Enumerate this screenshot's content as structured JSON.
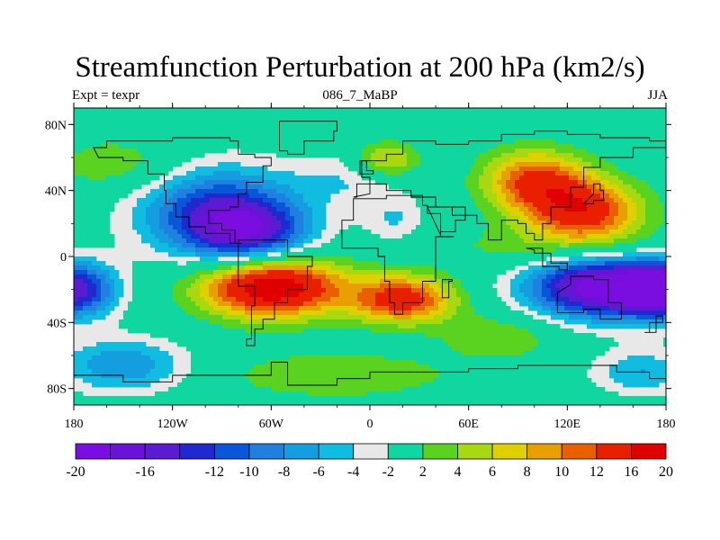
{
  "header": {
    "title": "Streamfunction Perturbation at 200 hPa (km2/s)",
    "left_label": "Expt = texpr",
    "center_label": "086_7_MaBP",
    "right_label": "JJA"
  },
  "colors": {
    "background_field": "#e8e8e8",
    "coastline": "#000000",
    "palette": [
      "#7a0ee0",
      "#6a12d8",
      "#5a1cd0",
      "#2028d0",
      "#0a56d8",
      "#1f80e0",
      "#149ee0",
      "#10bce0",
      "#e8e8e8",
      "#10d6a0",
      "#5ad220",
      "#a8d810",
      "#e0d000",
      "#e8a000",
      "#e86000",
      "#e82000",
      "#e00000"
    ]
  },
  "chart_data": {
    "type": "heatmap",
    "projection": "cylindrical-equidistant",
    "xlim": [
      -180,
      180
    ],
    "ylim": [
      -90,
      90
    ],
    "x_ticks": [
      {
        "value": -180,
        "label": "180"
      },
      {
        "value": -120,
        "label": "120W"
      },
      {
        "value": -60,
        "label": "60W"
      },
      {
        "value": 0,
        "label": "0"
      },
      {
        "value": 60,
        "label": "60E"
      },
      {
        "value": 120,
        "label": "120E"
      },
      {
        "value": 180,
        "label": "180"
      }
    ],
    "y_ticks": [
      {
        "value": 80,
        "label": "80N"
      },
      {
        "value": 40,
        "label": "40N"
      },
      {
        "value": 0,
        "label": "0"
      },
      {
        "value": -40,
        "label": "40S"
      },
      {
        "value": -80,
        "label": "80S"
      }
    ],
    "contour_levels": [
      -20,
      -18,
      -16,
      -14,
      -12,
      -10,
      -8,
      -6,
      -4,
      -2,
      2,
      4,
      6,
      8,
      10,
      12,
      16,
      20
    ],
    "colorbar_labels": [
      {
        "value": -20,
        "label": "-20"
      },
      {
        "value": -16,
        "label": "-16"
      },
      {
        "value": -12,
        "label": "-12"
      },
      {
        "value": -10,
        "label": "-10"
      },
      {
        "value": -8,
        "label": "-8"
      },
      {
        "value": -6,
        "label": "-6"
      },
      {
        "value": -4,
        "label": "-4"
      },
      {
        "value": -2,
        "label": "-2"
      },
      {
        "value": 2,
        "label": "2"
      },
      {
        "value": 4,
        "label": "4"
      },
      {
        "value": 6,
        "label": "6"
      },
      {
        "value": 8,
        "label": "8"
      },
      {
        "value": 10,
        "label": "10"
      },
      {
        "value": 12,
        "label": "12"
      },
      {
        "value": 16,
        "label": "16"
      },
      {
        "value": 20,
        "label": "20"
      }
    ],
    "field_features": [
      {
        "lon": -95,
        "lat": 28,
        "value": -12,
        "sx": 34,
        "sy": 20
      },
      {
        "lon": -72,
        "lat": 14,
        "value": -12,
        "sx": 26,
        "sy": 14
      },
      {
        "lon": -180,
        "lat": -20,
        "value": -16,
        "sx": 18,
        "sy": 12
      },
      {
        "lon": 180,
        "lat": -20,
        "value": -16,
        "sx": 18,
        "sy": 12
      },
      {
        "lon": 140,
        "lat": -18,
        "value": -20,
        "sx": 32,
        "sy": 14
      },
      {
        "lon": -150,
        "lat": -66,
        "value": -8,
        "sx": 28,
        "sy": 12
      },
      {
        "lon": 165,
        "lat": -70,
        "value": -6,
        "sx": 22,
        "sy": 10
      },
      {
        "lon": -10,
        "lat": 48,
        "value": -4,
        "sx": 26,
        "sy": 12
      },
      {
        "lon": 15,
        "lat": 22,
        "value": -4,
        "sx": 14,
        "sy": 10
      },
      {
        "lon": -60,
        "lat": -18,
        "value": 20,
        "sx": 30,
        "sy": 13
      },
      {
        "lon": 20,
        "lat": -26,
        "value": 14,
        "sx": 22,
        "sy": 10
      },
      {
        "lon": 100,
        "lat": 46,
        "value": 12,
        "sx": 22,
        "sy": 13
      },
      {
        "lon": 130,
        "lat": 28,
        "value": 14,
        "sx": 24,
        "sy": 13
      },
      {
        "lon": 10,
        "lat": 58,
        "value": 8,
        "sx": 14,
        "sy": 8
      },
      {
        "lon": -20,
        "lat": -72,
        "value": 4,
        "sx": 50,
        "sy": 10
      },
      {
        "lon": 80,
        "lat": -48,
        "value": 4,
        "sx": 26,
        "sy": 10
      },
      {
        "lon": -150,
        "lat": 55,
        "value": 4,
        "sx": 30,
        "sy": 12
      },
      {
        "lon": 120,
        "lat": 5,
        "value": 4,
        "sx": 50,
        "sy": 10
      }
    ]
  }
}
